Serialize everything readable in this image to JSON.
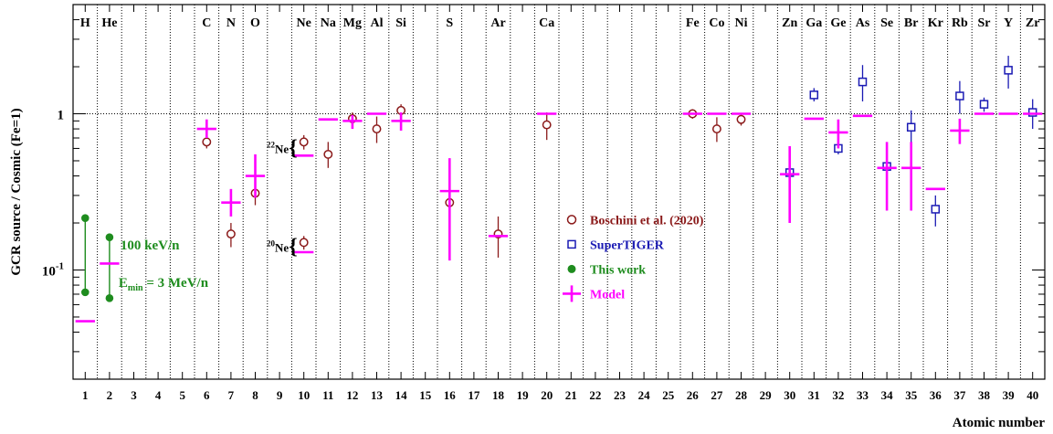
{
  "chart_data": {
    "type": "scatter",
    "xlabel": "Atomic number",
    "ylabel": "GCR source / Cosmic (Fe=1)",
    "xlim": [
      0.5,
      40.5
    ],
    "ylim": [
      0.02,
      5
    ],
    "yscale": "log",
    "grid": "vertical dotted lines between elements, horizontal dotted line at 1",
    "x_ticks": [
      "1",
      "2",
      "3",
      "4",
      "5",
      "6",
      "7",
      "8",
      "9",
      "10",
      "11",
      "12",
      "13",
      "14",
      "15",
      "16",
      "17",
      "18",
      "19",
      "20",
      "21",
      "22",
      "23",
      "24",
      "25",
      "26",
      "27",
      "28",
      "29",
      "30",
      "31",
      "32",
      "33",
      "34",
      "35",
      "36",
      "37",
      "38",
      "39",
      "40"
    ],
    "y_tick_labels": [
      {
        "value": 0.1,
        "base": "10",
        "exp": "-1"
      },
      {
        "value": 1,
        "base": "1",
        "exp": ""
      }
    ],
    "elements": [
      {
        "z": 1,
        "symbol": "H"
      },
      {
        "z": 2,
        "symbol": "He"
      },
      {
        "z": 6,
        "symbol": "C"
      },
      {
        "z": 7,
        "symbol": "N"
      },
      {
        "z": 8,
        "symbol": "O"
      },
      {
        "z": 10,
        "symbol": "Ne"
      },
      {
        "z": 11,
        "symbol": "Na"
      },
      {
        "z": 12,
        "symbol": "Mg"
      },
      {
        "z": 13,
        "symbol": "Al"
      },
      {
        "z": 14,
        "symbol": "Si"
      },
      {
        "z": 16,
        "symbol": "S"
      },
      {
        "z": 18,
        "symbol": "Ar"
      },
      {
        "z": 20,
        "symbol": "Ca"
      },
      {
        "z": 26,
        "symbol": "Fe"
      },
      {
        "z": 27,
        "symbol": "Co"
      },
      {
        "z": 28,
        "symbol": "Ni"
      },
      {
        "z": 30,
        "symbol": "Zn"
      },
      {
        "z": 31,
        "symbol": "Ga"
      },
      {
        "z": 32,
        "symbol": "Ge"
      },
      {
        "z": 33,
        "symbol": "As"
      },
      {
        "z": 34,
        "symbol": "Se"
      },
      {
        "z": 35,
        "symbol": "Br"
      },
      {
        "z": 36,
        "symbol": "Kr"
      },
      {
        "z": 37,
        "symbol": "Rb"
      },
      {
        "z": 38,
        "symbol": "Sr"
      },
      {
        "z": 39,
        "symbol": "Y"
      },
      {
        "z": 40,
        "symbol": "Zr"
      }
    ],
    "series": [
      {
        "name": "Boschini et al. (2020)",
        "color": "#8b1a1a",
        "marker": "open-circle",
        "points": [
          {
            "x": 6,
            "y": 0.66,
            "lo": 0.6,
            "hi": 0.72
          },
          {
            "x": 7,
            "y": 0.17,
            "lo": 0.14,
            "hi": 0.2
          },
          {
            "x": 8,
            "y": 0.31,
            "lo": 0.26,
            "hi": 0.37
          },
          {
            "x": 10,
            "y": 0.66,
            "lo": 0.59,
            "hi": 0.73
          },
          {
            "x": 10,
            "y": 0.15,
            "lo": 0.135,
            "hi": 0.165
          },
          {
            "x": 11,
            "y": 0.55,
            "lo": 0.45,
            "hi": 0.66
          },
          {
            "x": 12,
            "y": 0.93,
            "lo": 0.85,
            "hi": 1.02
          },
          {
            "x": 13,
            "y": 0.8,
            "lo": 0.65,
            "hi": 0.96
          },
          {
            "x": 14,
            "y": 1.05,
            "lo": 0.95,
            "hi": 1.15
          },
          {
            "x": 16,
            "y": 0.27,
            "lo": 0.23,
            "hi": 0.31
          },
          {
            "x": 18,
            "y": 0.17,
            "lo": 0.12,
            "hi": 0.22
          },
          {
            "x": 20,
            "y": 0.85,
            "lo": 0.68,
            "hi": 1.02
          },
          {
            "x": 26,
            "y": 1.0,
            "lo": 0.93,
            "hi": 1.07
          },
          {
            "x": 27,
            "y": 0.8,
            "lo": 0.66,
            "hi": 0.95
          },
          {
            "x": 28,
            "y": 0.92,
            "lo": 0.84,
            "hi": 1.0
          }
        ]
      },
      {
        "name": "SuperTIGER",
        "color": "#1a1ab4",
        "marker": "open-square",
        "points": [
          {
            "x": 30,
            "y": 0.42,
            "lo": 0.39,
            "hi": 0.45
          },
          {
            "x": 31,
            "y": 1.32,
            "lo": 1.2,
            "hi": 1.46
          },
          {
            "x": 32,
            "y": 0.6,
            "lo": 0.55,
            "hi": 0.66
          },
          {
            "x": 33,
            "y": 1.6,
            "lo": 1.2,
            "hi": 2.05
          },
          {
            "x": 34,
            "y": 0.46,
            "lo": 0.43,
            "hi": 0.49
          },
          {
            "x": 35,
            "y": 0.82,
            "lo": 0.62,
            "hi": 1.05
          },
          {
            "x": 36,
            "y": 0.245,
            "lo": 0.19,
            "hi": 0.3
          },
          {
            "x": 37,
            "y": 1.3,
            "lo": 1.0,
            "hi": 1.62
          },
          {
            "x": 38,
            "y": 1.15,
            "lo": 1.03,
            "hi": 1.27
          },
          {
            "x": 39,
            "y": 1.9,
            "lo": 1.45,
            "hi": 2.35
          },
          {
            "x": 40,
            "y": 1.02,
            "lo": 0.8,
            "hi": 1.24
          }
        ]
      },
      {
        "name": "This work",
        "color": "#1e8c1e",
        "marker": "filled-circle",
        "points": [
          {
            "x": 1,
            "label": "E_min = 3 MeV/n",
            "y": 0.072
          },
          {
            "x": 1,
            "label": "100 keV/n",
            "y": 0.215
          },
          {
            "x": 2,
            "label": "E_min = 3 MeV/n",
            "y": 0.066
          },
          {
            "x": 2,
            "label": "100 keV/n",
            "y": 0.162
          }
        ]
      },
      {
        "name": "Model",
        "color": "#ff00ff",
        "marker": "cross",
        "points": [
          {
            "x": 1,
            "y": 0.047,
            "lo": 0.047,
            "hi": 0.047
          },
          {
            "x": 2,
            "y": 0.11,
            "lo": 0.11,
            "hi": 0.11
          },
          {
            "x": 6,
            "y": 0.8,
            "lo": 0.7,
            "hi": 0.92
          },
          {
            "x": 7,
            "y": 0.27,
            "lo": 0.22,
            "hi": 0.33
          },
          {
            "x": 8,
            "y": 0.4,
            "lo": 0.29,
            "hi": 0.55
          },
          {
            "x": 10,
            "y": 0.54,
            "lo": 0.54,
            "hi": 0.54
          },
          {
            "x": 10,
            "y": 0.13,
            "lo": 0.13,
            "hi": 0.13
          },
          {
            "x": 11,
            "y": 0.92,
            "lo": 0.92,
            "hi": 0.92
          },
          {
            "x": 12,
            "y": 0.9,
            "lo": 0.8,
            "hi": 0.98
          },
          {
            "x": 13,
            "y": 1.0,
            "lo": 1.0,
            "hi": 1.0
          },
          {
            "x": 14,
            "y": 0.9,
            "lo": 0.78,
            "hi": 1.02
          },
          {
            "x": 16,
            "y": 0.32,
            "lo": 0.115,
            "hi": 0.52
          },
          {
            "x": 18,
            "y": 0.165,
            "lo": 0.165,
            "hi": 0.165
          },
          {
            "x": 20,
            "y": 1.0,
            "lo": 1.0,
            "hi": 1.0
          },
          {
            "x": 26,
            "y": 1.0,
            "lo": 1.0,
            "hi": 1.0
          },
          {
            "x": 27,
            "y": 1.0,
            "lo": 1.0,
            "hi": 1.0
          },
          {
            "x": 28,
            "y": 1.0,
            "lo": 1.0,
            "hi": 1.0
          },
          {
            "x": 30,
            "y": 0.41,
            "lo": 0.2,
            "hi": 0.62
          },
          {
            "x": 31,
            "y": 0.93,
            "lo": 0.93,
            "hi": 0.93
          },
          {
            "x": 32,
            "y": 0.76,
            "lo": 0.6,
            "hi": 0.92
          },
          {
            "x": 33,
            "y": 0.97,
            "lo": 0.97,
            "hi": 0.97
          },
          {
            "x": 34,
            "y": 0.45,
            "lo": 0.24,
            "hi": 0.66
          },
          {
            "x": 35,
            "y": 0.45,
            "lo": 0.24,
            "hi": 0.66
          },
          {
            "x": 36,
            "y": 0.33,
            "lo": 0.33,
            "hi": 0.33
          },
          {
            "x": 37,
            "y": 0.78,
            "lo": 0.64,
            "hi": 0.93
          },
          {
            "x": 38,
            "y": 1.0,
            "lo": 1.0,
            "hi": 1.0
          },
          {
            "x": 39,
            "y": 1.0,
            "lo": 1.0,
            "hi": 1.0
          },
          {
            "x": 40,
            "y": 1.0,
            "lo": 1.0,
            "hi": 1.0
          }
        ]
      }
    ],
    "annotations": [
      {
        "text": "100 keV/n",
        "color": "#1e8c1e"
      },
      {
        "text": "E",
        "sub": "min",
        "rest": " = 3 MeV/n",
        "color": "#1e8c1e"
      },
      {
        "text": "Ne{",
        "sup": "22"
      },
      {
        "text": "Ne{",
        "sup": "20"
      }
    ],
    "legend": {
      "placement": "center",
      "entries": [
        "Boschini et al. (2020)",
        "SuperTIGER",
        "This work",
        "Model"
      ]
    }
  }
}
